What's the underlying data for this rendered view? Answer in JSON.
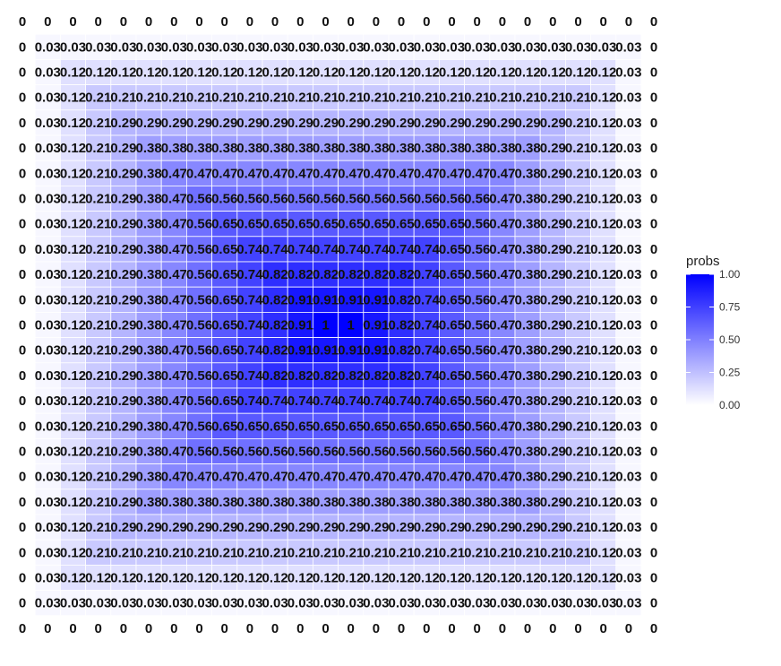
{
  "chart_data": {
    "type": "heatmap",
    "title": "",
    "xlabel": "",
    "ylabel": "",
    "grid": false,
    "color_low": "#ffffff",
    "color_high": "#0000ff",
    "cell_border_color": "#ffffff",
    "rows": [
      [
        "0",
        "0",
        "0",
        "0",
        "0",
        "0",
        "0",
        "0",
        "0",
        "0",
        "0",
        "0",
        "0",
        "0",
        "0",
        "0",
        "0",
        "0",
        "0",
        "0",
        "0",
        "0",
        "0",
        "0",
        "0",
        "0"
      ],
      [
        "0",
        "0.03",
        "0.03",
        "0.03",
        "0.03",
        "0.03",
        "0.03",
        "0.03",
        "0.03",
        "0.03",
        "0.03",
        "0.03",
        "0.03",
        "0.03",
        "0.03",
        "0.03",
        "0.03",
        "0.03",
        "0.03",
        "0.03",
        "0.03",
        "0.03",
        "0.03",
        "0.03",
        "0.03",
        "0"
      ],
      [
        "0",
        "0.03",
        "0.12",
        "0.12",
        "0.12",
        "0.12",
        "0.12",
        "0.12",
        "0.12",
        "0.12",
        "0.12",
        "0.12",
        "0.12",
        "0.12",
        "0.12",
        "0.12",
        "0.12",
        "0.12",
        "0.12",
        "0.12",
        "0.12",
        "0.12",
        "0.12",
        "0.12",
        "0.03",
        "0"
      ],
      [
        "0",
        "0.03",
        "0.12",
        "0.21",
        "0.21",
        "0.21",
        "0.21",
        "0.21",
        "0.21",
        "0.21",
        "0.21",
        "0.21",
        "0.21",
        "0.21",
        "0.21",
        "0.21",
        "0.21",
        "0.21",
        "0.21",
        "0.21",
        "0.21",
        "0.21",
        "0.21",
        "0.12",
        "0.03",
        "0"
      ],
      [
        "0",
        "0.03",
        "0.12",
        "0.21",
        "0.29",
        "0.29",
        "0.29",
        "0.29",
        "0.29",
        "0.29",
        "0.29",
        "0.29",
        "0.29",
        "0.29",
        "0.29",
        "0.29",
        "0.29",
        "0.29",
        "0.29",
        "0.29",
        "0.29",
        "0.29",
        "0.21",
        "0.12",
        "0.03",
        "0"
      ],
      [
        "0",
        "0.03",
        "0.12",
        "0.21",
        "0.29",
        "0.38",
        "0.38",
        "0.38",
        "0.38",
        "0.38",
        "0.38",
        "0.38",
        "0.38",
        "0.38",
        "0.38",
        "0.38",
        "0.38",
        "0.38",
        "0.38",
        "0.38",
        "0.38",
        "0.29",
        "0.21",
        "0.12",
        "0.03",
        "0"
      ],
      [
        "0",
        "0.03",
        "0.12",
        "0.21",
        "0.29",
        "0.38",
        "0.47",
        "0.47",
        "0.47",
        "0.47",
        "0.47",
        "0.47",
        "0.47",
        "0.47",
        "0.47",
        "0.47",
        "0.47",
        "0.47",
        "0.47",
        "0.47",
        "0.38",
        "0.29",
        "0.21",
        "0.12",
        "0.03",
        "0"
      ],
      [
        "0",
        "0.03",
        "0.12",
        "0.21",
        "0.29",
        "0.38",
        "0.47",
        "0.56",
        "0.56",
        "0.56",
        "0.56",
        "0.56",
        "0.56",
        "0.56",
        "0.56",
        "0.56",
        "0.56",
        "0.56",
        "0.56",
        "0.47",
        "0.38",
        "0.29",
        "0.21",
        "0.12",
        "0.03",
        "0"
      ],
      [
        "0",
        "0.03",
        "0.12",
        "0.21",
        "0.29",
        "0.38",
        "0.47",
        "0.56",
        "0.65",
        "0.65",
        "0.65",
        "0.65",
        "0.65",
        "0.65",
        "0.65",
        "0.65",
        "0.65",
        "0.65",
        "0.56",
        "0.47",
        "0.38",
        "0.29",
        "0.21",
        "0.12",
        "0.03",
        "0"
      ],
      [
        "0",
        "0.03",
        "0.12",
        "0.21",
        "0.29",
        "0.38",
        "0.47",
        "0.56",
        "0.65",
        "0.74",
        "0.74",
        "0.74",
        "0.74",
        "0.74",
        "0.74",
        "0.74",
        "0.74",
        "0.65",
        "0.56",
        "0.47",
        "0.38",
        "0.29",
        "0.21",
        "0.12",
        "0.03",
        "0"
      ],
      [
        "0",
        "0.03",
        "0.12",
        "0.21",
        "0.29",
        "0.38",
        "0.47",
        "0.56",
        "0.65",
        "0.74",
        "0.82",
        "0.82",
        "0.82",
        "0.82",
        "0.82",
        "0.82",
        "0.74",
        "0.65",
        "0.56",
        "0.47",
        "0.38",
        "0.29",
        "0.21",
        "0.12",
        "0.03",
        "0"
      ],
      [
        "0",
        "0.03",
        "0.12",
        "0.21",
        "0.29",
        "0.38",
        "0.47",
        "0.56",
        "0.65",
        "0.74",
        "0.82",
        "0.91",
        "0.91",
        "0.91",
        "0.91",
        "0.82",
        "0.74",
        "0.65",
        "0.56",
        "0.47",
        "0.38",
        "0.29",
        "0.21",
        "0.12",
        "0.03",
        "0"
      ],
      [
        "0",
        "0.03",
        "0.12",
        "0.21",
        "0.29",
        "0.38",
        "0.47",
        "0.56",
        "0.65",
        "0.74",
        "0.82",
        "0.91",
        "1",
        "1",
        "0.91",
        "0.82",
        "0.74",
        "0.65",
        "0.56",
        "0.47",
        "0.38",
        "0.29",
        "0.21",
        "0.12",
        "0.03",
        "0"
      ],
      [
        "0",
        "0.03",
        "0.12",
        "0.21",
        "0.29",
        "0.38",
        "0.47",
        "0.56",
        "0.65",
        "0.74",
        "0.82",
        "0.91",
        "0.91",
        "0.91",
        "0.91",
        "0.82",
        "0.74",
        "0.65",
        "0.56",
        "0.47",
        "0.38",
        "0.29",
        "0.21",
        "0.12",
        "0.03",
        "0"
      ],
      [
        "0",
        "0.03",
        "0.12",
        "0.21",
        "0.29",
        "0.38",
        "0.47",
        "0.56",
        "0.65",
        "0.74",
        "0.82",
        "0.82",
        "0.82",
        "0.82",
        "0.82",
        "0.82",
        "0.74",
        "0.65",
        "0.56",
        "0.47",
        "0.38",
        "0.29",
        "0.21",
        "0.12",
        "0.03",
        "0"
      ],
      [
        "0",
        "0.03",
        "0.12",
        "0.21",
        "0.29",
        "0.38",
        "0.47",
        "0.56",
        "0.65",
        "0.74",
        "0.74",
        "0.74",
        "0.74",
        "0.74",
        "0.74",
        "0.74",
        "0.74",
        "0.65",
        "0.56",
        "0.47",
        "0.38",
        "0.29",
        "0.21",
        "0.12",
        "0.03",
        "0"
      ],
      [
        "0",
        "0.03",
        "0.12",
        "0.21",
        "0.29",
        "0.38",
        "0.47",
        "0.56",
        "0.65",
        "0.65",
        "0.65",
        "0.65",
        "0.65",
        "0.65",
        "0.65",
        "0.65",
        "0.65",
        "0.65",
        "0.56",
        "0.47",
        "0.38",
        "0.29",
        "0.21",
        "0.12",
        "0.03",
        "0"
      ],
      [
        "0",
        "0.03",
        "0.12",
        "0.21",
        "0.29",
        "0.38",
        "0.47",
        "0.56",
        "0.56",
        "0.56",
        "0.56",
        "0.56",
        "0.56",
        "0.56",
        "0.56",
        "0.56",
        "0.56",
        "0.56",
        "0.56",
        "0.47",
        "0.38",
        "0.29",
        "0.21",
        "0.12",
        "0.03",
        "0"
      ],
      [
        "0",
        "0.03",
        "0.12",
        "0.21",
        "0.29",
        "0.38",
        "0.47",
        "0.47",
        "0.47",
        "0.47",
        "0.47",
        "0.47",
        "0.47",
        "0.47",
        "0.47",
        "0.47",
        "0.47",
        "0.47",
        "0.47",
        "0.47",
        "0.38",
        "0.29",
        "0.21",
        "0.12",
        "0.03",
        "0"
      ],
      [
        "0",
        "0.03",
        "0.12",
        "0.21",
        "0.29",
        "0.38",
        "0.38",
        "0.38",
        "0.38",
        "0.38",
        "0.38",
        "0.38",
        "0.38",
        "0.38",
        "0.38",
        "0.38",
        "0.38",
        "0.38",
        "0.38",
        "0.38",
        "0.38",
        "0.29",
        "0.21",
        "0.12",
        "0.03",
        "0"
      ],
      [
        "0",
        "0.03",
        "0.12",
        "0.21",
        "0.29",
        "0.29",
        "0.29",
        "0.29",
        "0.29",
        "0.29",
        "0.29",
        "0.29",
        "0.29",
        "0.29",
        "0.29",
        "0.29",
        "0.29",
        "0.29",
        "0.29",
        "0.29",
        "0.29",
        "0.29",
        "0.21",
        "0.12",
        "0.03",
        "0"
      ],
      [
        "0",
        "0.03",
        "0.12",
        "0.21",
        "0.21",
        "0.21",
        "0.21",
        "0.21",
        "0.21",
        "0.21",
        "0.21",
        "0.21",
        "0.21",
        "0.21",
        "0.21",
        "0.21",
        "0.21",
        "0.21",
        "0.21",
        "0.21",
        "0.21",
        "0.21",
        "0.21",
        "0.12",
        "0.03",
        "0"
      ],
      [
        "0",
        "0.03",
        "0.12",
        "0.12",
        "0.12",
        "0.12",
        "0.12",
        "0.12",
        "0.12",
        "0.12",
        "0.12",
        "0.12",
        "0.12",
        "0.12",
        "0.12",
        "0.12",
        "0.12",
        "0.12",
        "0.12",
        "0.12",
        "0.12",
        "0.12",
        "0.12",
        "0.12",
        "0.03",
        "0"
      ],
      [
        "0",
        "0.03",
        "0.03",
        "0.03",
        "0.03",
        "0.03",
        "0.03",
        "0.03",
        "0.03",
        "0.03",
        "0.03",
        "0.03",
        "0.03",
        "0.03",
        "0.03",
        "0.03",
        "0.03",
        "0.03",
        "0.03",
        "0.03",
        "0.03",
        "0.03",
        "0.03",
        "0.03",
        "0.03",
        "0"
      ],
      [
        "0",
        "0",
        "0",
        "0",
        "0",
        "0",
        "0",
        "0",
        "0",
        "0",
        "0",
        "0",
        "0",
        "0",
        "0",
        "0",
        "0",
        "0",
        "0",
        "0",
        "0",
        "0",
        "0",
        "0",
        "0",
        "0"
      ]
    ],
    "legend": {
      "title": "probs",
      "placement": "right",
      "range": [
        0,
        1
      ],
      "ticks": [
        "0.00",
        "0.25",
        "0.50",
        "0.75",
        "1.00"
      ]
    }
  }
}
